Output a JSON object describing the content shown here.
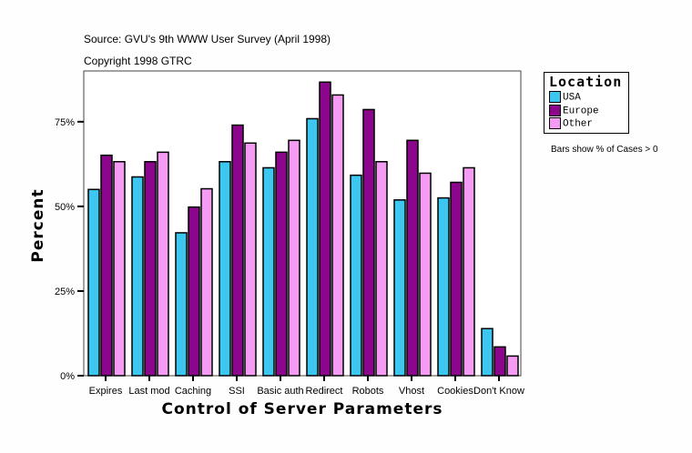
{
  "chart_data": {
    "type": "bar",
    "header_lines": [
      "Source: GVU's 9th WWW User Survey (April 1998)",
      "Copyright 1998 GTRC"
    ],
    "xlabel": "Control of Server Parameters",
    "ylabel": "Percent",
    "categories": [
      "Expires",
      "Last mod",
      "Caching",
      "SSI",
      "Basic auth",
      "Redirect",
      "Robots",
      "Vhost",
      "Cookies",
      "Don't Know"
    ],
    "series": [
      {
        "name": "USA",
        "color": "#3cc6f0",
        "values": [
          55.0,
          58.7,
          42.2,
          63.2,
          61.4,
          75.9,
          59.2,
          51.9,
          52.5,
          13.9
        ]
      },
      {
        "name": "Europe",
        "color": "#8b068b",
        "values": [
          65.1,
          63.2,
          49.8,
          74.0,
          66.0,
          86.7,
          78.6,
          69.5,
          57.1,
          8.5
        ]
      },
      {
        "name": "Other",
        "color": "#f49cf4",
        "values": [
          63.2,
          66.0,
          55.2,
          68.7,
          69.5,
          82.9,
          63.2,
          59.8,
          61.4,
          5.8
        ]
      }
    ],
    "ylim": [
      0,
      90
    ],
    "yticks": [
      0,
      25,
      50,
      75
    ],
    "ytick_labels": [
      "0%",
      "25%",
      "50%",
      "75%"
    ],
    "grid": false,
    "legend": {
      "title": "Location",
      "placement": "right"
    },
    "note": "Bars show % of Cases > 0"
  }
}
